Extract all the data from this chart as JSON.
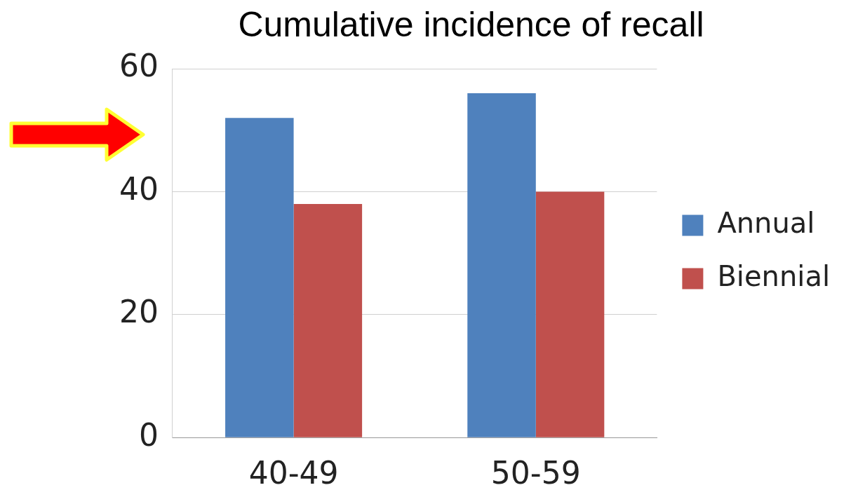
{
  "chart_data": {
    "type": "bar",
    "title": "Cumulative incidence of recall",
    "categories": [
      "40-49",
      "50-59"
    ],
    "series": [
      {
        "name": "Annual",
        "color": "#4f81bd",
        "values": [
          52,
          56
        ]
      },
      {
        "name": "Biennial",
        "color": "#c0504d",
        "values": [
          38,
          40
        ]
      }
    ],
    "ylim": [
      0,
      60
    ],
    "yticks": [
      0,
      20,
      40,
      60
    ],
    "grid": "y",
    "legend": "right"
  }
}
